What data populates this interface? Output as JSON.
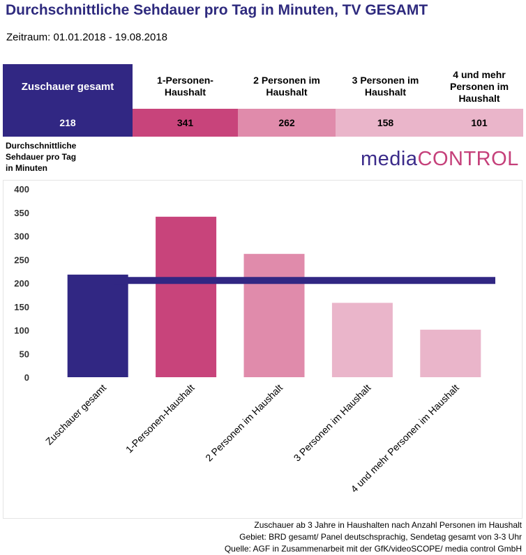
{
  "title": "Durchschnittliche Sehdauer pro Tag in Minuten, TV GESAMT",
  "subtitle": "Zeitraum: 01.01.2018 - 19.08.2018",
  "logo": {
    "part1": "media",
    "part2": "CONTROL"
  },
  "table": {
    "headers": [
      "Zuschauer gesamt",
      "1-Personen-\nHaushalt",
      "2 Personen im\nHaushalt",
      "3 Personen im\nHaushalt",
      "4 und mehr\nPersonen im\nHaushalt"
    ],
    "values": [
      "218",
      "341",
      "262",
      "158",
      "101"
    ]
  },
  "colors": {
    "total": "#312783",
    "p1": "#c8447b",
    "p2": "#e08bab",
    "p3": "#eab5ca",
    "p4": "#eab5ca",
    "p1_light": "#e08bab",
    "p3_light": "#f0c8d7",
    "p4_light": "#f0c8d7"
  },
  "footer": [
    "Zuschauer ab 3 Jahre in Haushalten nach Anzahl Personen im Haushalt",
    "Gebiet: BRD gesamt/ Panel deutschsprachig, Sendetag gesamt von 3-3 Uhr",
    "Quelle: AGF in Zusammenarbeit mit der GfK/videoSCOPE/ media control GmbH"
  ],
  "chart_data": {
    "type": "bar",
    "title": "Durchschnittliche Sehdauer pro Tag in Minuten, TV GESAMT",
    "ylabel": "Durchschnittliche Sehdauer pro Tag in Minuten",
    "xlabel": "",
    "categories": [
      "Zuschauer gesamt",
      "1-Personen-Haushalt",
      "2 Personen im Haushalt",
      "3 Personen im Haushalt",
      "4 und mehr Personen im Haushalt"
    ],
    "values": [
      218,
      341,
      262,
      158,
      101
    ],
    "bar_colors": [
      "#312783",
      "#c8447b",
      "#e08bab",
      "#eab5ca",
      "#eab5ca"
    ],
    "reference_line": {
      "value": 210,
      "color": "#312783"
    },
    "ylim": [
      0,
      400
    ],
    "yticks": [
      0,
      50,
      100,
      150,
      200,
      250,
      300,
      350,
      400
    ],
    "grid": false,
    "legend": "none"
  }
}
